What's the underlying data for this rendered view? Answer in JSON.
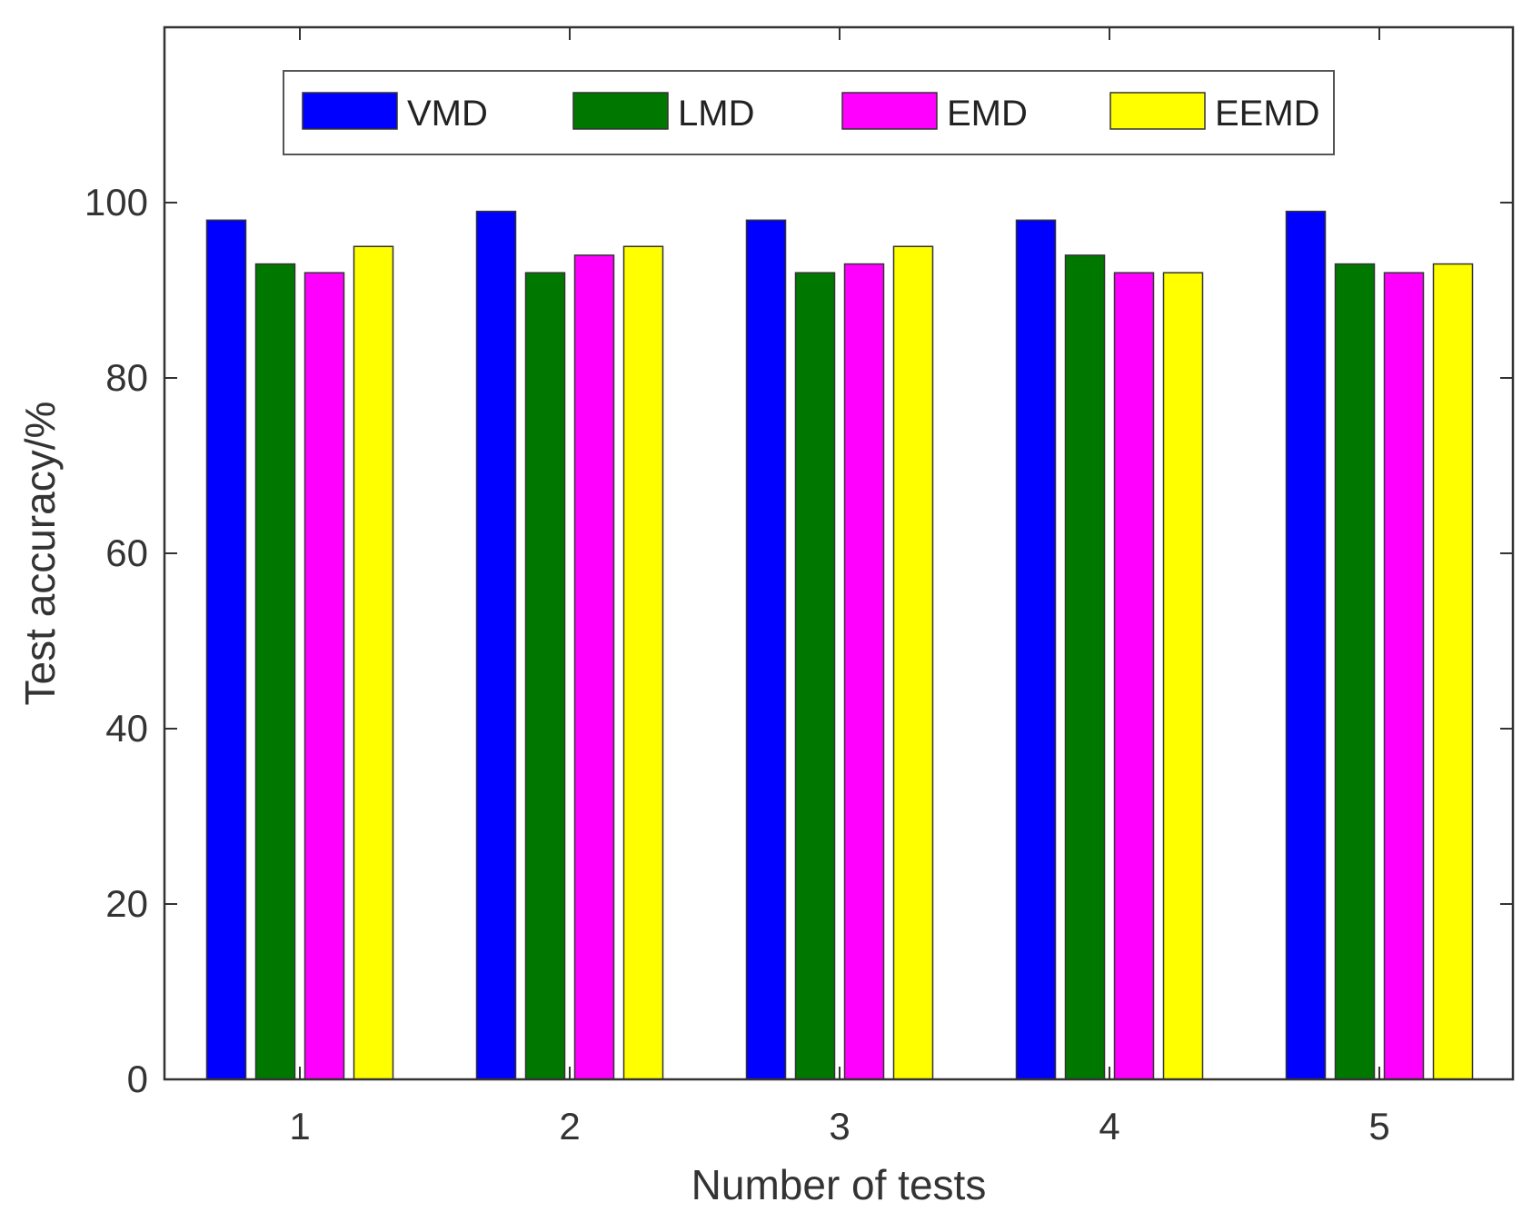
{
  "chart_data": {
    "type": "bar",
    "categories": [
      "1",
      "2",
      "3",
      "4",
      "5"
    ],
    "series": [
      {
        "name": "VMD",
        "color": "#0000ff",
        "values": [
          98,
          99,
          98,
          98,
          99
        ]
      },
      {
        "name": "LMD",
        "color": "#007800",
        "values": [
          93,
          92,
          92,
          94,
          93
        ]
      },
      {
        "name": "EMD",
        "color": "#ff00ff",
        "values": [
          92,
          94,
          93,
          92,
          92
        ]
      },
      {
        "name": "EEMD",
        "color": "#ffff00",
        "values": [
          95,
          95,
          95,
          92,
          93
        ]
      }
    ],
    "xlabel": "Number of tests",
    "ylabel": "Test accuracy/%",
    "ylim": [
      0,
      120
    ],
    "yticks": [
      0,
      20,
      40,
      60,
      80,
      100
    ],
    "grid": false,
    "legend_position": "top-center"
  }
}
